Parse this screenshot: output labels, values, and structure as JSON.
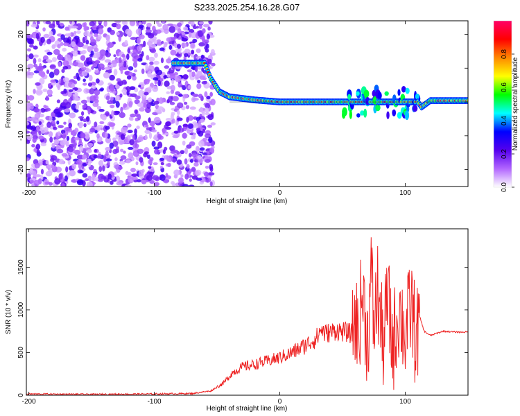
{
  "title": "S233.2025.254.16.28.G07",
  "chart_data": [
    {
      "type": "heatmap",
      "xlabel": "Height of straight line (km)",
      "ylabel": "Frequency (Hz)",
      "xlim": [
        -202,
        150
      ],
      "ylim": [
        -25,
        24
      ],
      "xticks": [
        -200,
        -100,
        0,
        100
      ],
      "yticks": [
        -20,
        -10,
        0,
        10,
        20
      ],
      "colorbar": {
        "label": "Normalized spectral amplitude",
        "range": [
          0,
          1
        ],
        "ticks": [
          "0.0",
          "0.2",
          "0.4",
          "0.6",
          "0.8"
        ],
        "colors": [
          "#ffffff",
          "#b266ff",
          "#5500ee",
          "#0000ff",
          "#00ffff",
          "#00ff00",
          "#ffff00",
          "#ff8800",
          "#ff0000",
          "#ff0066"
        ]
      },
      "signal_track": [
        {
          "x": -85,
          "f": 11.5
        },
        {
          "x": -60,
          "f": 11.5
        },
        {
          "x": -55,
          "f": 7
        },
        {
          "x": -48,
          "f": 3
        },
        {
          "x": -40,
          "f": 1.5
        },
        {
          "x": -20,
          "f": 0.6
        },
        {
          "x": 0,
          "f": 0
        },
        {
          "x": 40,
          "f": 0
        },
        {
          "x": 50,
          "f": 0
        },
        {
          "x": 110,
          "f": 0
        },
        {
          "x": 113,
          "f": -1.5
        },
        {
          "x": 120,
          "f": 0.4
        },
        {
          "x": 150,
          "f": 0.4
        }
      ],
      "noise_region": [
        -202,
        -53
      ],
      "disturbed_region": [
        50,
        110
      ]
    },
    {
      "type": "line",
      "xlabel": "Height of straight line (km)",
      "ylabel": "SNR (10 * v/v)",
      "xlim": [
        -202,
        150
      ],
      "ylim": [
        0,
        1950
      ],
      "xticks": [
        -200,
        -100,
        0,
        100
      ],
      "yticks": [
        0,
        500,
        1000,
        1500
      ],
      "series": [
        {
          "name": "SNR",
          "color": "#ee2222",
          "x": [
            -202,
            -150,
            -100,
            -70,
            -55,
            -45,
            -38,
            -30,
            -20,
            -10,
            0,
            10,
            20,
            30,
            33,
            36,
            45,
            58,
            60,
            62,
            66,
            70,
            73,
            75,
            78,
            82,
            86,
            90,
            95,
            100,
            105,
            108,
            112,
            115,
            120,
            130,
            140,
            150
          ],
          "y": [
            15,
            10,
            15,
            20,
            50,
            140,
            260,
            330,
            360,
            400,
            440,
            500,
            580,
            680,
            780,
            720,
            760,
            720,
            1100,
            650,
            1550,
            500,
            1950,
            800,
            1600,
            450,
            1400,
            400,
            1200,
            650,
            1300,
            600,
            900,
            750,
            700,
            750,
            740,
            740
          ]
        }
      ]
    }
  ]
}
